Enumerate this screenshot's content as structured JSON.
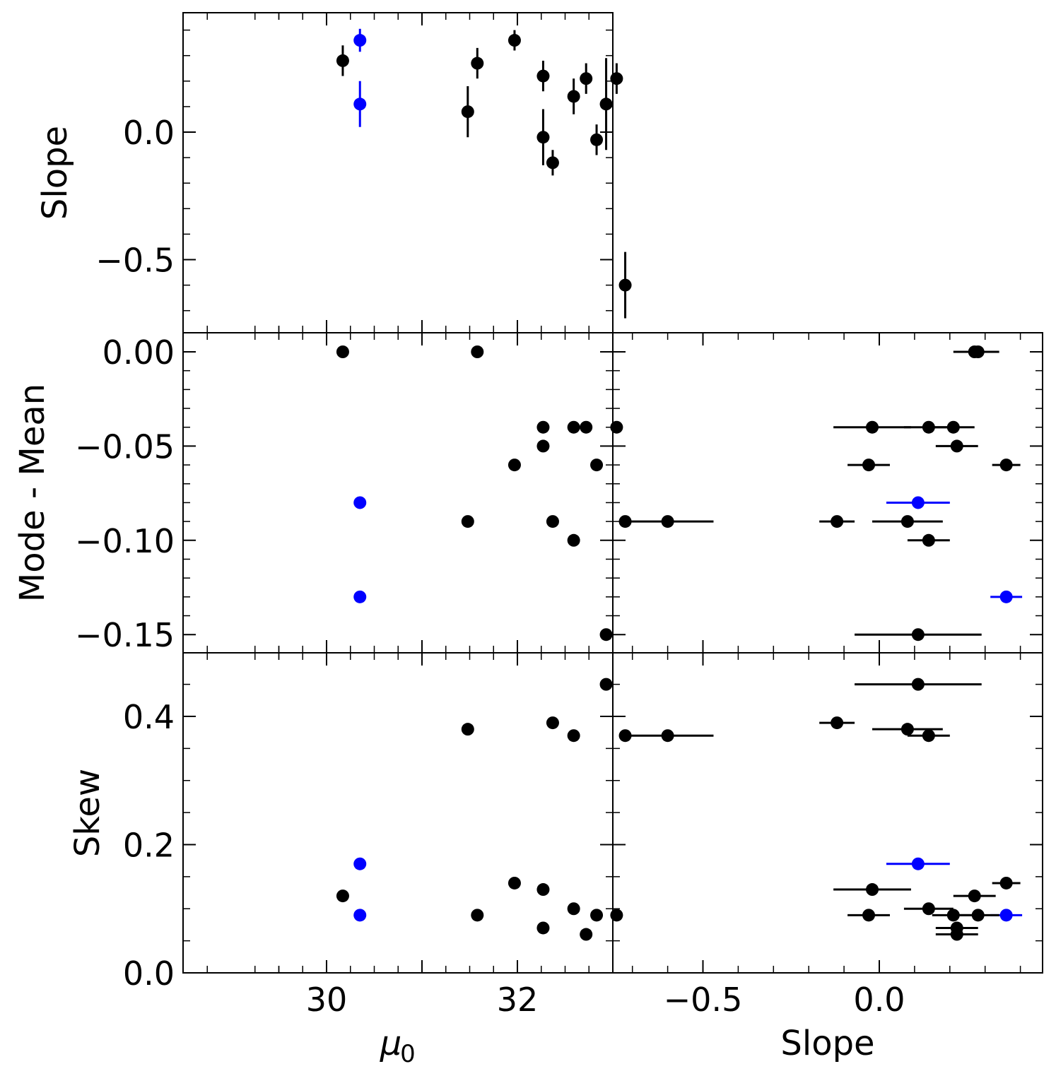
{
  "colors": {
    "black": "#000000",
    "blue": "#0000ff"
  },
  "chart_data": [
    {
      "id": "p1",
      "type": "scatter",
      "xlabel": "",
      "ylabel": "Slope",
      "xlim": [
        28.5,
        33.0
      ],
      "ylim": [
        -0.78,
        0.47
      ],
      "xticks": [],
      "yticks": [
        "0.0",
        "−0.5"
      ],
      "series": [
        {
          "color": "blue",
          "points": [
            {
              "x": 30.35,
              "y": 0.36,
              "yerr": 0.045
            },
            {
              "x": 30.35,
              "y": 0.11,
              "yerr": 0.09
            }
          ]
        },
        {
          "color": "black",
          "points": [
            {
              "x": 30.17,
              "y": 0.28,
              "yerr": 0.06
            },
            {
              "x": 31.48,
              "y": 0.08,
              "yerr": 0.1
            },
            {
              "x": 31.58,
              "y": 0.27,
              "yerr": 0.06
            },
            {
              "x": 31.97,
              "y": 0.36,
              "yerr": 0.04
            },
            {
              "x": 32.27,
              "y": 0.22,
              "yerr": 0.06
            },
            {
              "x": 32.27,
              "y": -0.02,
              "yerr": 0.11
            },
            {
              "x": 32.37,
              "y": -0.12,
              "yerr": 0.05
            },
            {
              "x": 32.59,
              "y": 0.14,
              "yerr": 0.07
            },
            {
              "x": 32.72,
              "y": 0.21,
              "yerr": 0.06
            },
            {
              "x": 32.83,
              "y": -0.03,
              "yerr": 0.06
            },
            {
              "x": 32.93,
              "y": 0.11,
              "yerr": 0.18
            },
            {
              "x": 33.04,
              "y": 0.21,
              "yerr": 0.06
            },
            {
              "x": 33.13,
              "y": -0.6,
              "yerr": 0.13
            }
          ]
        }
      ]
    },
    {
      "id": "p2",
      "type": "scatter",
      "xlabel": "",
      "ylabel": "Mode - Mean",
      "xlim": [
        28.5,
        33.0
      ],
      "ylim": [
        -0.16,
        0.011
      ],
      "xticks": [],
      "yticks": [
        "0.00",
        "−0.05",
        "−0.10",
        "−0.15"
      ],
      "series": [
        {
          "color": "blue",
          "points": [
            {
              "x": 30.35,
              "y": -0.08
            },
            {
              "x": 30.35,
              "y": -0.13
            }
          ]
        },
        {
          "color": "black",
          "points": [
            {
              "x": 30.17,
              "y": 0.0
            },
            {
              "x": 31.48,
              "y": -0.09
            },
            {
              "x": 31.58,
              "y": 0.0
            },
            {
              "x": 31.97,
              "y": -0.06
            },
            {
              "x": 32.27,
              "y": -0.04
            },
            {
              "x": 32.27,
              "y": -0.05
            },
            {
              "x": 32.37,
              "y": -0.09
            },
            {
              "x": 32.59,
              "y": -0.1
            },
            {
              "x": 32.59,
              "y": -0.04
            },
            {
              "x": 32.72,
              "y": -0.04
            },
            {
              "x": 32.83,
              "y": -0.06
            },
            {
              "x": 32.93,
              "y": -0.15
            },
            {
              "x": 33.04,
              "y": -0.04
            },
            {
              "x": 33.13,
              "y": -0.09
            }
          ]
        }
      ]
    },
    {
      "id": "p3",
      "type": "scatter",
      "xlabel": "μ0",
      "ylabel": "Skew",
      "xlim": [
        28.5,
        33.0
      ],
      "ylim": [
        0.0,
        0.47
      ],
      "xticks": [
        "30",
        "32"
      ],
      "yticks": [
        "0.0",
        "0.2",
        "0.4"
      ],
      "series": [
        {
          "color": "blue",
          "points": [
            {
              "x": 30.35,
              "y": 0.17
            },
            {
              "x": 30.35,
              "y": 0.09
            }
          ]
        },
        {
          "color": "black",
          "points": [
            {
              "x": 30.17,
              "y": 0.12
            },
            {
              "x": 31.48,
              "y": 0.38
            },
            {
              "x": 31.58,
              "y": 0.09
            },
            {
              "x": 31.97,
              "y": 0.14
            },
            {
              "x": 32.27,
              "y": 0.13
            },
            {
              "x": 32.27,
              "y": 0.07
            },
            {
              "x": 32.37,
              "y": 0.39
            },
            {
              "x": 32.59,
              "y": 0.37
            },
            {
              "x": 32.59,
              "y": 0.1
            },
            {
              "x": 32.72,
              "y": 0.06
            },
            {
              "x": 32.83,
              "y": 0.09
            },
            {
              "x": 32.93,
              "y": 0.45
            },
            {
              "x": 33.04,
              "y": 0.09
            },
            {
              "x": 33.13,
              "y": 0.37
            }
          ]
        }
      ]
    },
    {
      "id": "p4",
      "type": "scatter",
      "xlabel": "",
      "ylabel": "",
      "xlim": [
        -0.78,
        0.47
      ],
      "ylim": [
        -0.16,
        0.011
      ],
      "xticks": [],
      "yticks": [],
      "series": [
        {
          "color": "blue",
          "points": [
            {
              "x": 0.11,
              "y": -0.08,
              "xerr": 0.09
            },
            {
              "x": 0.36,
              "y": -0.13,
              "xerr": 0.045
            }
          ]
        },
        {
          "color": "black",
          "points": [
            {
              "x": 0.28,
              "y": 0.0,
              "xerr": 0.06
            },
            {
              "x": 0.27,
              "y": 0.0,
              "xerr": 0.06
            },
            {
              "x": -0.02,
              "y": -0.04,
              "xerr": 0.11
            },
            {
              "x": 0.14,
              "y": -0.04,
              "xerr": 0.07
            },
            {
              "x": 0.21,
              "y": -0.04,
              "xerr": 0.06
            },
            {
              "x": 0.22,
              "y": -0.05,
              "xerr": 0.06
            },
            {
              "x": -0.03,
              "y": -0.06,
              "xerr": 0.06
            },
            {
              "x": 0.36,
              "y": -0.06,
              "xerr": 0.04
            },
            {
              "x": -0.6,
              "y": -0.09,
              "xerr": 0.13
            },
            {
              "x": -0.12,
              "y": -0.09,
              "xerr": 0.05
            },
            {
              "x": 0.08,
              "y": -0.09,
              "xerr": 0.1
            },
            {
              "x": 0.14,
              "y": -0.1,
              "xerr": 0.06
            },
            {
              "x": 0.11,
              "y": -0.15,
              "xerr": 0.18
            }
          ]
        }
      ]
    },
    {
      "id": "p5",
      "type": "scatter",
      "xlabel": "Slope",
      "ylabel": "",
      "xlim": [
        -0.78,
        0.47
      ],
      "ylim": [
        0.0,
        0.47
      ],
      "xticks": [
        "−0.5",
        "0.0"
      ],
      "yticks": [],
      "series": [
        {
          "color": "blue",
          "points": [
            {
              "x": 0.11,
              "y": 0.17,
              "xerr": 0.09
            },
            {
              "x": 0.36,
              "y": 0.09,
              "xerr": 0.045
            }
          ]
        },
        {
          "color": "black",
          "points": [
            {
              "x": 0.11,
              "y": 0.45,
              "xerr": 0.18
            },
            {
              "x": -0.12,
              "y": 0.39,
              "xerr": 0.05
            },
            {
              "x": 0.08,
              "y": 0.38,
              "xerr": 0.1
            },
            {
              "x": 0.14,
              "y": 0.37,
              "xerr": 0.06
            },
            {
              "x": -0.6,
              "y": 0.37,
              "xerr": 0.13
            },
            {
              "x": 0.36,
              "y": 0.14,
              "xerr": 0.04
            },
            {
              "x": -0.02,
              "y": 0.13,
              "xerr": 0.11
            },
            {
              "x": 0.27,
              "y": 0.12,
              "xerr": 0.06
            },
            {
              "x": 0.14,
              "y": 0.1,
              "xerr": 0.07
            },
            {
              "x": -0.03,
              "y": 0.09,
              "xerr": 0.06
            },
            {
              "x": 0.21,
              "y": 0.09,
              "xerr": 0.06
            },
            {
              "x": 0.28,
              "y": 0.09,
              "xerr": 0.06
            },
            {
              "x": 0.22,
              "y": 0.07,
              "xerr": 0.06
            },
            {
              "x": 0.22,
              "y": 0.06,
              "xerr": 0.06
            }
          ]
        }
      ]
    }
  ]
}
